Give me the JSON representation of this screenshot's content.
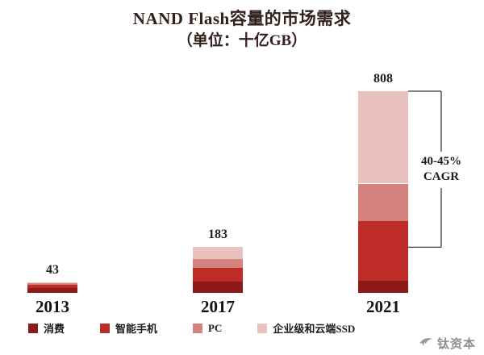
{
  "header": {
    "title": "NAND Flash容量的市场需求",
    "subtitle": "（单位：十亿GB）"
  },
  "annotation": {
    "rate": "40-45%",
    "label": "CAGR"
  },
  "watermark": {
    "text": "钛资本"
  },
  "chart_data": {
    "type": "bar",
    "stacked": true,
    "title": "NAND Flash容量的市场需求",
    "unit": "十亿GB",
    "categories": [
      "2013",
      "2017",
      "2021"
    ],
    "totals": [
      43,
      183,
      808
    ],
    "series": [
      {
        "name": "消费",
        "color": "#8c1a18",
        "values": [
          20,
          45,
          48
        ]
      },
      {
        "name": "智能手机",
        "color": "#bd2c27",
        "values": [
          13,
          55,
          240
        ]
      },
      {
        "name": "PC",
        "color": "#d4827e",
        "values": [
          6,
          35,
          150
        ]
      },
      {
        "name": "企业级和云端SSD",
        "color": "#e9c2c0",
        "values": [
          4,
          48,
          370
        ]
      }
    ],
    "annotation": "40-45% CAGR",
    "legend_position": "bottom",
    "grid": false,
    "ylim": [
      0,
      850
    ]
  }
}
